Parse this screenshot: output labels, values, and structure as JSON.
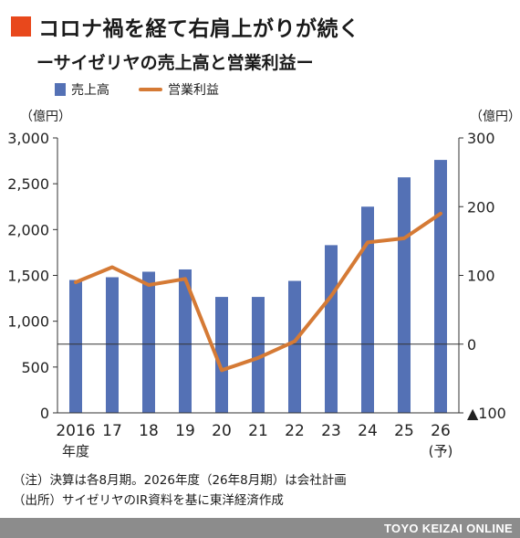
{
  "title": "コロナ禍を経て右肩上がりが続く",
  "subtitle": "ーサイゼリヤの売上高と営業利益ー",
  "notes": [
    "（注）決算は各8月期。2026年度（26年8月期）は会社計画",
    "（出所）サイゼリヤのIR資料を基に東洋経済作成"
  ],
  "footer": "TOYO KEIZAI ONLINE",
  "colors": {
    "accent": "#e8481c",
    "bar": "#5471b5",
    "line": "#d57a35",
    "footer_bg": "#8c8c8c"
  },
  "chart_data": {
    "type": "bar",
    "title": "コロナ禍を経て右肩上がりが続く",
    "subtitle": "ーサイゼリヤの売上高と営業利益ー",
    "categories": [
      "2016",
      "17",
      "18",
      "19",
      "20",
      "21",
      "22",
      "23",
      "24",
      "25",
      "26"
    ],
    "category_sublabels": [
      "年度",
      "",
      "",
      "",
      "",
      "",
      "",
      "",
      "",
      "",
      "(予)"
    ],
    "legend": {
      "position": "top-left",
      "entries": [
        "売上高",
        "営業利益"
      ]
    },
    "series": [
      {
        "name": "売上高",
        "type": "bar",
        "axis": "left",
        "values": [
          1450,
          1480,
          1540,
          1565,
          1265,
          1265,
          1440,
          1830,
          2250,
          2570,
          2760
        ]
      },
      {
        "name": "営業利益",
        "type": "line",
        "axis": "right",
        "values": [
          90,
          112,
          86,
          95,
          -38,
          -20,
          4,
          70,
          148,
          154,
          190
        ]
      }
    ],
    "y_left": {
      "unit": "（億円）",
      "ylim": [
        0,
        3000
      ],
      "ticks": [
        0,
        500,
        1000,
        1500,
        2000,
        2500,
        3000
      ],
      "tick_labels": [
        "0",
        "500",
        "1,000",
        "1,500",
        "2,000",
        "2,500",
        "3,000"
      ]
    },
    "y_right": {
      "unit": "（億円）",
      "ylim": [
        -100,
        300
      ],
      "ticks": [
        -100,
        0,
        100,
        200,
        300
      ],
      "tick_labels": [
        "▲100",
        "0",
        "100",
        "200",
        "300"
      ]
    },
    "grid": false
  }
}
